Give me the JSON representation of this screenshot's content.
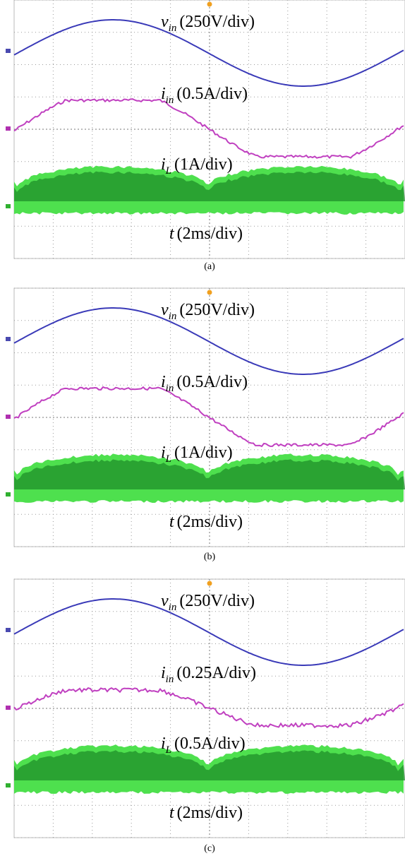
{
  "panels": [
    {
      "traces": [
        {
          "symbol": "v",
          "subscript": "in",
          "scale": "(250V/div)"
        },
        {
          "symbol": "i",
          "subscript": "in",
          "scale": "(0.5A/div)"
        },
        {
          "symbol": "i",
          "subscript": "L",
          "scale": "(1A/div)"
        }
      ],
      "time": {
        "symbol": "t",
        "scale": "(2ms/div)"
      },
      "caption": "(a)"
    },
    {
      "traces": [
        {
          "symbol": "v",
          "subscript": "in",
          "scale": "(250V/div)"
        },
        {
          "symbol": "i",
          "subscript": "in",
          "scale": "(0.5A/div)"
        },
        {
          "symbol": "i",
          "subscript": "L",
          "scale": "(1A/div)"
        }
      ],
      "time": {
        "symbol": "t",
        "scale": "(2ms/div)"
      },
      "caption": "(b)"
    },
    {
      "traces": [
        {
          "symbol": "v",
          "subscript": "in",
          "scale": "(250V/div)"
        },
        {
          "symbol": "i",
          "subscript": "in",
          "scale": "(0.25A/div)"
        },
        {
          "symbol": "i",
          "subscript": "L",
          "scale": "(0.5A/div)"
        }
      ],
      "time": {
        "symbol": "t",
        "scale": "(2ms/div)"
      },
      "caption": "(c)"
    }
  ]
}
